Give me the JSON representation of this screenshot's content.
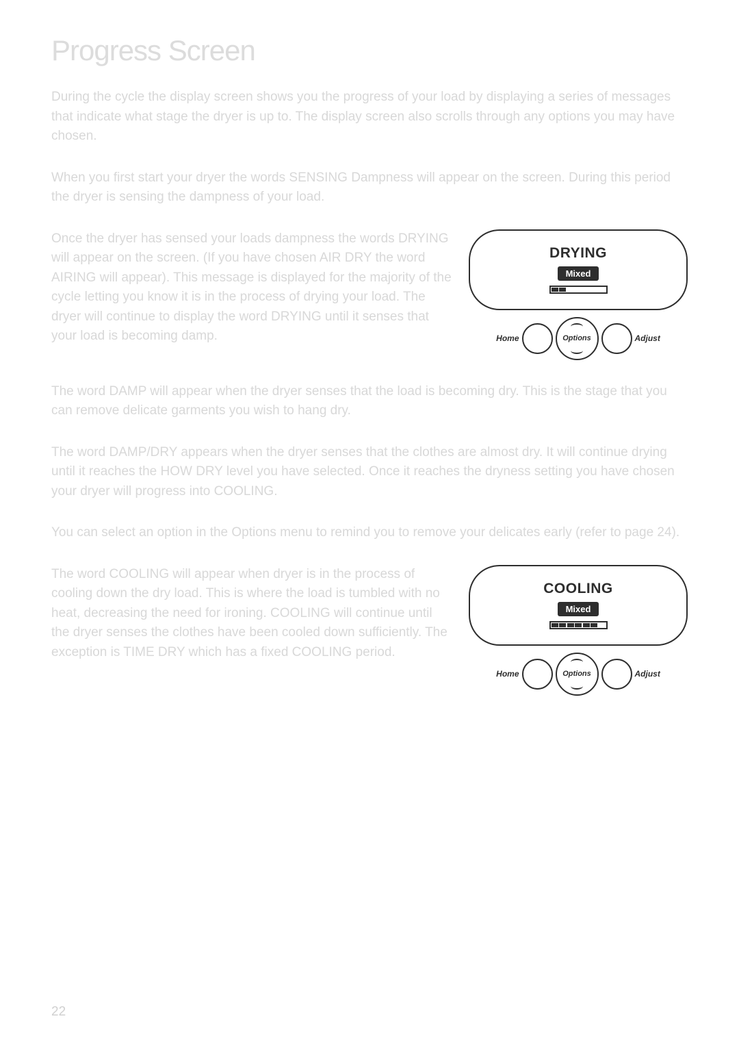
{
  "title": "Progress Screen",
  "p1": "During the cycle the display screen shows you the progress of your load by displaying a series of messages that indicate what stage the dryer is up to. The display screen also scrolls through any options you may have chosen.",
  "p2": "When you first start your dryer the words SENSING Dampness will appear on the screen. During this period the dryer is sensing the dampness of your load.",
  "p3": "Once the dryer has sensed your loads dampness the words DRYING will appear on the screen. (If you have chosen AIR DRY the word AIRING will appear). This message is displayed for the majority of the cycle letting you know it is in the process of drying your load. The dryer will continue to display the word DRYING until it senses that your load is becoming damp.",
  "p4": "The word DAMP will appear when the dryer senses that the load is becoming dry. This is the stage that you can remove delicate garments you wish to hang dry.",
  "p5": "The word DAMP/DRY appears when the dryer senses that the clothes are almost dry. It will continue drying until it reaches the HOW DRY level you have selected. Once it reaches the dryness setting you have chosen your dryer will progress into COOLING.",
  "p6": "You can select an option in the Options menu to remind you to remove your delicates early (refer to page 24).",
  "p7": "The word COOLING will appear when dryer is in the process of cooling down the dry load. This is where the load is tumbled with no heat, decreasing the need for ironing. COOLING will continue until the dryer senses the clothes have been cooled down sufficiently. The exception is TIME DRY which has a fixed COOLING period.",
  "panel1": {
    "title": "DRYING",
    "chip": "Mixed",
    "segments": [
      true,
      true,
      false,
      false,
      false,
      false,
      false
    ],
    "home": "Home",
    "options": "Options",
    "adjust": "Adjust"
  },
  "panel2": {
    "title": "COOLING",
    "chip": "Mixed",
    "segments": [
      true,
      true,
      true,
      true,
      true,
      true,
      false
    ],
    "home": "Home",
    "options": "Options",
    "adjust": "Adjust"
  },
  "pageNumber": "22",
  "colors": {
    "title_color": "#dcdcdc",
    "body_color": "#d8d8d8",
    "panel_stroke": "#2e2e2e",
    "background": "#ffffff"
  }
}
